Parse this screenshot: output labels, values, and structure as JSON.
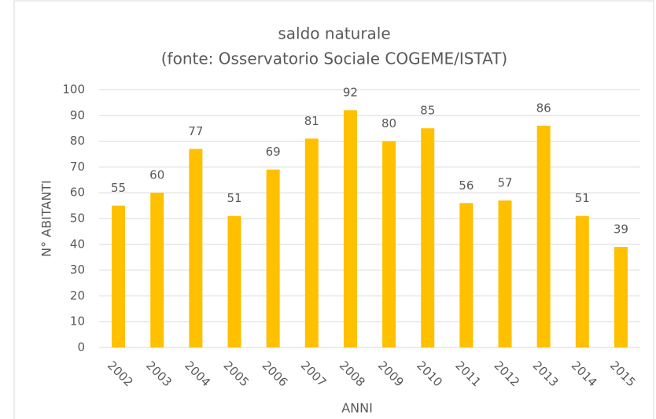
{
  "chart_data": {
    "type": "bar",
    "title": "saldo naturale",
    "subtitle": "(fonte: Osservatorio Sociale COGEME/ISTAT)",
    "x_label": "ANNI",
    "y_label": "N° ABITANTI",
    "categories": [
      "2002",
      "2003",
      "2004",
      "2005",
      "2006",
      "2007",
      "2008",
      "2009",
      "2010",
      "2011",
      "2012",
      "2013",
      "2014",
      "2015"
    ],
    "values": [
      55,
      60,
      77,
      51,
      69,
      81,
      92,
      80,
      85,
      56,
      57,
      86,
      51,
      39
    ],
    "color": "#ffc000",
    "ylim": [
      0,
      100
    ],
    "yticks": [
      0,
      10,
      20,
      30,
      40,
      50,
      60,
      70,
      80,
      90,
      100
    ],
    "grid": true
  }
}
